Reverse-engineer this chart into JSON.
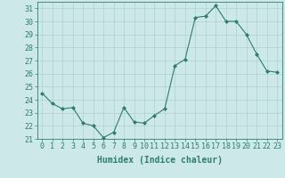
{
  "x": [
    0,
    1,
    2,
    3,
    4,
    5,
    6,
    7,
    8,
    9,
    10,
    11,
    12,
    13,
    14,
    15,
    16,
    17,
    18,
    19,
    20,
    21,
    22,
    23
  ],
  "y": [
    24.5,
    23.7,
    23.3,
    23.4,
    22.2,
    22.0,
    21.1,
    21.5,
    23.4,
    22.3,
    22.2,
    22.8,
    23.3,
    26.6,
    27.1,
    30.3,
    30.4,
    31.2,
    30.0,
    30.0,
    29.0,
    27.5,
    26.2,
    26.1
  ],
  "line_color": "#2e7d6e",
  "marker": "D",
  "marker_size": 2.0,
  "bg_color": "#cde8e8",
  "grid_color": "#b0d0d0",
  "xlabel": "Humidex (Indice chaleur)",
  "ylim": [
    21,
    31.5
  ],
  "yticks": [
    21,
    22,
    23,
    24,
    25,
    26,
    27,
    28,
    29,
    30,
    31
  ],
  "xticks": [
    0,
    1,
    2,
    3,
    4,
    5,
    6,
    7,
    8,
    9,
    10,
    11,
    12,
    13,
    14,
    15,
    16,
    17,
    18,
    19,
    20,
    21,
    22,
    23
  ],
  "tick_color": "#2e7d6e",
  "label_color": "#2e7d6e",
  "font_size": 6.0,
  "xlabel_fontsize": 7.0
}
